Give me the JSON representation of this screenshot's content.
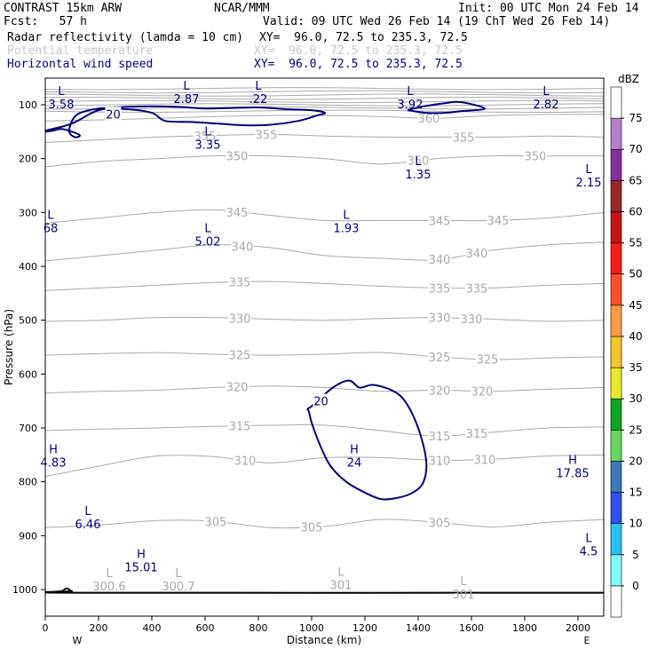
{
  "header": {
    "model": "CONTRAST 15km ARW",
    "org": "NCAR/MMM",
    "init": "Init: 00 UTC Mon 24 Feb 14",
    "fcst": "Fcst:   57 h",
    "valid": "Valid: 09 UTC Wed 26 Feb 14 (19 ChT Wed 26 Feb 14)",
    "field1_name": "Radar reflectivity (lamda = 10 cm)",
    "field1_xy": "XY=  96.0, 72.5 to 235.3, 72.5",
    "field2_name": "Potential temperature",
    "field2_xy": "XY=  96.0, 72.5 to 235.3, 72.5",
    "field3_name": "Horizontal wind speed",
    "field3_xy": "XY=  96.0, 72.5 to 235.3, 72.5"
  },
  "colors": {
    "reflectivity_text": "#000000",
    "theta": "#aaaaaa",
    "wind": "#000080"
  },
  "chart_data": {
    "type": "vertical-cross-section",
    "xlabel": "Distance (km)",
    "ylabel": "Pressure (hPa)",
    "xlim": [
      0,
      2100
    ],
    "ylim": [
      1050,
      50
    ],
    "xticks": [
      "0",
      "200",
      "400",
      "600",
      "800",
      "1000",
      "1200",
      "1400",
      "1600",
      "1800",
      "2000"
    ],
    "xtick_values": [
      0,
      200,
      400,
      600,
      800,
      1000,
      1200,
      1400,
      1600,
      1800,
      2000
    ],
    "yticks": [
      "100",
      "200",
      "300",
      "400",
      "500",
      "600",
      "700",
      "800",
      "900",
      "1000"
    ],
    "ytick_values": [
      100,
      200,
      300,
      400,
      500,
      600,
      700,
      800,
      900,
      1000
    ],
    "x_endpoints": {
      "left": "W",
      "right": "E"
    },
    "colorbar": {
      "unit": "dBZ",
      "levels": [
        "0",
        "5",
        "10",
        "15",
        "20",
        "25",
        "30",
        "35",
        "40",
        "45",
        "50",
        "55",
        "60",
        "65",
        "70",
        "75"
      ],
      "colors": [
        "#ffffff",
        "#7ffcff",
        "#22c4f6",
        "#2f4ff2",
        "#3a79bd",
        "#63d85b",
        "#0ea61f",
        "#e8ea29",
        "#f7c425",
        "#fb9e42",
        "#fc4e2a",
        "#fc1a12",
        "#c81313",
        "#9a2828",
        "#8a2ca2",
        "#b780c6",
        "#ffffff"
      ]
    },
    "theta_contours": [
      {
        "level": 305,
        "p": [
          885,
          880,
          872,
          873,
          885,
          883,
          870,
          875,
          884,
          875,
          870
        ],
        "labels": [
          "305",
          "305",
          "305"
        ],
        "label_x": [
          640,
          1000,
          1480
        ]
      },
      {
        "level": 310,
        "p": [
          790,
          770,
          752,
          753,
          765,
          755,
          755,
          760,
          758,
          752,
          750
        ],
        "labels": [
          "310",
          "310",
          "310"
        ],
        "label_x": [
          750,
          1480,
          1650
        ]
      },
      {
        "level": 315,
        "p": [
          705,
          702,
          700,
          697,
          695,
          695,
          705,
          715,
          708,
          700,
          698
        ],
        "labels": [
          "315",
          "315",
          "315"
        ],
        "label_x": [
          730,
          1480,
          1620
        ]
      },
      {
        "level": 320,
        "p": [
          635,
          632,
          630,
          625,
          622,
          625,
          632,
          630,
          632,
          628,
          625
        ],
        "labels": [
          "320",
          "320",
          "320"
        ],
        "label_x": [
          720,
          1480,
          1640
        ]
      },
      {
        "level": 325,
        "p": [
          565,
          562,
          560,
          563,
          565,
          563,
          560,
          568,
          573,
          570,
          568
        ],
        "labels": [
          "325",
          "325",
          "325"
        ],
        "label_x": [
          730,
          1480,
          1660
        ]
      },
      {
        "level": 330,
        "p": [
          502,
          500,
          495,
          495,
          498,
          500,
          497,
          495,
          498,
          502,
          500
        ],
        "labels": [
          "330",
          "330",
          "330"
        ],
        "label_x": [
          730,
          1480,
          1600
        ]
      },
      {
        "level": 335,
        "p": [
          445,
          440,
          435,
          430,
          428,
          432,
          437,
          440,
          440,
          435,
          432
        ],
        "labels": [
          "335",
          "335",
          "335"
        ],
        "label_x": [
          730,
          1480,
          1620
        ]
      },
      {
        "level": 340,
        "p": [
          390,
          380,
          370,
          360,
          365,
          380,
          385,
          388,
          370,
          360,
          355
        ],
        "labels": [
          "340",
          "340",
          "340"
        ],
        "label_x": [
          740,
          1480,
          1620
        ]
      },
      {
        "level": 345,
        "p": [
          320,
          310,
          300,
          295,
          305,
          315,
          315,
          315,
          315,
          310,
          300
        ],
        "labels": [
          "345",
          "345",
          "345"
        ],
        "label_x": [
          720,
          1480,
          1700
        ]
      },
      {
        "level": 350,
        "p": [
          215,
          205,
          200,
          195,
          195,
          200,
          210,
          200,
          195,
          195,
          195
        ],
        "labels": [
          "350",
          "350",
          "350"
        ],
        "label_x": [
          720,
          1400,
          1840
        ]
      },
      {
        "level": 355,
        "p": [
          170,
          165,
          160,
          157,
          155,
          158,
          160,
          160,
          160,
          158,
          160
        ],
        "labels": [
          "355",
          "355",
          "355"
        ],
        "label_x": [
          600,
          830,
          1570
        ]
      },
      {
        "level": 360,
        "p": [
          130,
          128,
          125,
          122,
          120,
          120,
          122,
          125,
          120,
          118,
          118
        ],
        "labels": [
          "360"
        ],
        "label_x": [
          1440
        ]
      }
    ],
    "theta_upper_stack_levels": [
      365,
      370,
      375,
      380,
      385,
      390,
      395,
      400
    ],
    "wind_20_contours": [
      {
        "label": "20",
        "x": [
          1000,
          1080,
          1140,
          1180,
          1230,
          1300,
          1350,
          1400,
          1430,
          1420,
          1380,
          1320,
          1260,
          1200,
          1130,
          1070,
          1030,
          1000,
          990,
          985,
          1000
        ],
        "p": [
          660,
          625,
          612,
          625,
          620,
          630,
          650,
          700,
          760,
          800,
          820,
          830,
          832,
          820,
          800,
          770,
          730,
          690,
          670,
          665,
          660
        ]
      },
      {
        "label": "20",
        "x": [
          0,
          100,
          200,
          300,
          400,
          450,
          550,
          650,
          750,
          850,
          950,
          1020,
          1050,
          1000,
          900,
          800,
          700,
          600,
          500,
          400,
          300,
          200,
          150,
          120,
          100,
          90,
          110,
          130,
          100,
          60,
          30,
          0
        ],
        "p": [
          148,
          135,
          110,
          108,
          115,
          130,
          132,
          135,
          138,
          137,
          130,
          120,
          115,
          110,
          108,
          105,
          106,
          107,
          104,
          103,
          104,
          107,
          112,
          118,
          130,
          150,
          160,
          157,
          150,
          145,
          148,
          150
        ]
      },
      {
        "label": "",
        "x": [
          1360,
          1420,
          1500,
          1560,
          1650,
          1560,
          1500,
          1430,
          1360
        ],
        "p": [
          110,
          103,
          97,
          95,
          107,
          112,
          115,
          115,
          110
        ]
      }
    ],
    "wind_marks": [
      {
        "kind": "L",
        "value": "3.58",
        "x": 60,
        "p": 85
      },
      {
        "kind": "L",
        "value": "2.87",
        "x": 530,
        "p": 75
      },
      {
        "kind": "L",
        "value": ".22",
        "x": 800,
        "p": 75
      },
      {
        "kind": "L",
        "value": "3.92",
        "x": 1370,
        "p": 85
      },
      {
        "kind": "L",
        "value": "2.82",
        "x": 1880,
        "p": 85
      },
      {
        "kind": "L",
        "value": "3.35",
        "x": 610,
        "p": 160
      },
      {
        "kind": "L",
        "value": "1.35",
        "x": 1400,
        "p": 215
      },
      {
        "kind": "L",
        "value": "2.15",
        "x": 2040,
        "p": 230
      },
      {
        "kind": "L",
        "value": "5.02",
        "x": 610,
        "p": 340
      },
      {
        "kind": "L",
        "value": "1.93",
        "x": 1130,
        "p": 315
      },
      {
        "kind": "L",
        "value": "68",
        "x": 20,
        "p": 315
      },
      {
        "kind": "H",
        "value": "4.83",
        "x": 30,
        "p": 750
      },
      {
        "kind": "H",
        "value": "24",
        "x": 1160,
        "p": 750
      },
      {
        "kind": "H",
        "value": "17.85",
        "x": 1980,
        "p": 770
      },
      {
        "kind": "L",
        "value": "6.46",
        "x": 160,
        "p": 865
      },
      {
        "kind": "H",
        "value": "15.01",
        "x": 360,
        "p": 945
      },
      {
        "kind": "L",
        "value": "4.5",
        "x": 2040,
        "p": 915
      }
    ],
    "theta_marks": [
      {
        "kind": "L",
        "value": "300.6",
        "x": 240,
        "p": 980
      },
      {
        "kind": "L",
        "value": "300.7",
        "x": 500,
        "p": 980
      },
      {
        "kind": "L",
        "value": "301",
        "x": 1110,
        "p": 978
      },
      {
        "kind": "L",
        "value": "301",
        "x": 1570,
        "p": 995
      }
    ],
    "surface_pressure": {
      "x": [
        0,
        60,
        80,
        100,
        130,
        2100
      ],
      "p": [
        1005,
        1003,
        998,
        1003,
        1006,
        1006
      ]
    }
  }
}
